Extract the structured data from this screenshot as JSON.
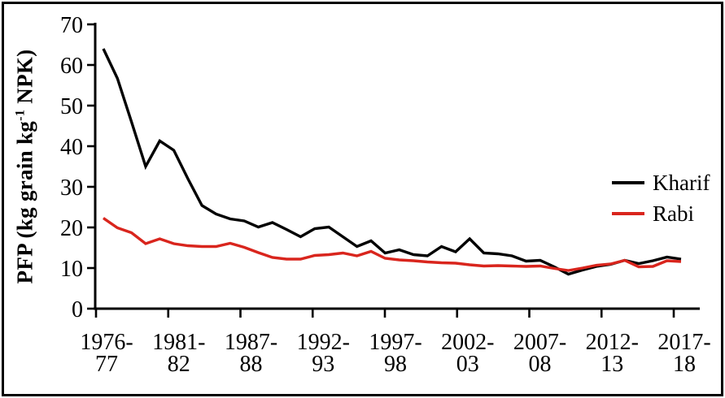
{
  "figure": {
    "background": "#ffffff",
    "border_color": "#000000"
  },
  "y_axis": {
    "label_pre": "PFP (kg grain kg",
    "label_sup": "-1",
    "label_post": " NPK)",
    "ticks": [
      0,
      10,
      20,
      30,
      40,
      50,
      60,
      70
    ],
    "min": 0,
    "max": 70
  },
  "x_axis": {
    "tick_labels": [
      "1976-77",
      "1981-82",
      "1987-88",
      "1992-93",
      "1997-98",
      "2002-03",
      "2007-08",
      "2012-13",
      "2017-18"
    ]
  },
  "legend": {
    "items": [
      {
        "label": "Kharif",
        "color": "#000000"
      },
      {
        "label": "Rabi",
        "color": "#d9251d"
      }
    ]
  },
  "chart_data": {
    "type": "line",
    "title": "",
    "xlabel": "",
    "ylabel": "PFP (kg grain kg⁻¹ NPK)",
    "ylim": [
      0,
      70
    ],
    "grid": false,
    "legend_position": "right",
    "xtick_labels_shown": [
      "1976-77",
      "1981-82",
      "1987-88",
      "1992-93",
      "1997-98",
      "2002-03",
      "2007-08",
      "2012-13",
      "2017-18"
    ],
    "categories": [
      "1976-77",
      "1977-78",
      "1978-79",
      "1979-80",
      "1980-81",
      "1981-82",
      "1982-83",
      "1983-84",
      "1984-85",
      "1985-86",
      "1986-87",
      "1987-88",
      "1988-89",
      "1989-90",
      "1990-91",
      "1991-92",
      "1992-93",
      "1993-94",
      "1994-95",
      "1995-96",
      "1996-97",
      "1997-98",
      "1998-99",
      "1999-00",
      "2000-01",
      "2001-02",
      "2002-03",
      "2003-04",
      "2004-05",
      "2005-06",
      "2006-07",
      "2007-08",
      "2008-09",
      "2009-10",
      "2010-11",
      "2011-12",
      "2012-13",
      "2013-14",
      "2014-15",
      "2015-16",
      "2016-17",
      "2017-18"
    ],
    "series": [
      {
        "name": "Kharif",
        "color": "#000000",
        "values": [
          64,
          56.7,
          46,
          35,
          41.3,
          39,
          32,
          25.4,
          23.3,
          22.1,
          21.6,
          20.1,
          21.2,
          19.5,
          17.7,
          19.7,
          20.1,
          17.7,
          15.3,
          16.7,
          13.7,
          14.5,
          13.3,
          13,
          15.3,
          14,
          17.2,
          13.7,
          13.5,
          13,
          11.7,
          11.9,
          10.3,
          8.5,
          9.5,
          10.4,
          10.9,
          11.9,
          11.1,
          11.8,
          12.7,
          12.2
        ]
      },
      {
        "name": "Rabi",
        "color": "#d9251d",
        "values": [
          22.3,
          19.9,
          18.7,
          16,
          17.2,
          16,
          15.5,
          15.3,
          15.3,
          16.1,
          15.1,
          13.8,
          12.6,
          12.2,
          12.2,
          13.1,
          13.3,
          13.7,
          13,
          14.1,
          12.4,
          12,
          11.8,
          11.5,
          11.3,
          11.2,
          10.8,
          10.5,
          10.6,
          10.5,
          10.4,
          10.5,
          9.9,
          9.4,
          10,
          10.7,
          11,
          11.9,
          10.3,
          10.4,
          11.8,
          11.6
        ]
      }
    ]
  }
}
